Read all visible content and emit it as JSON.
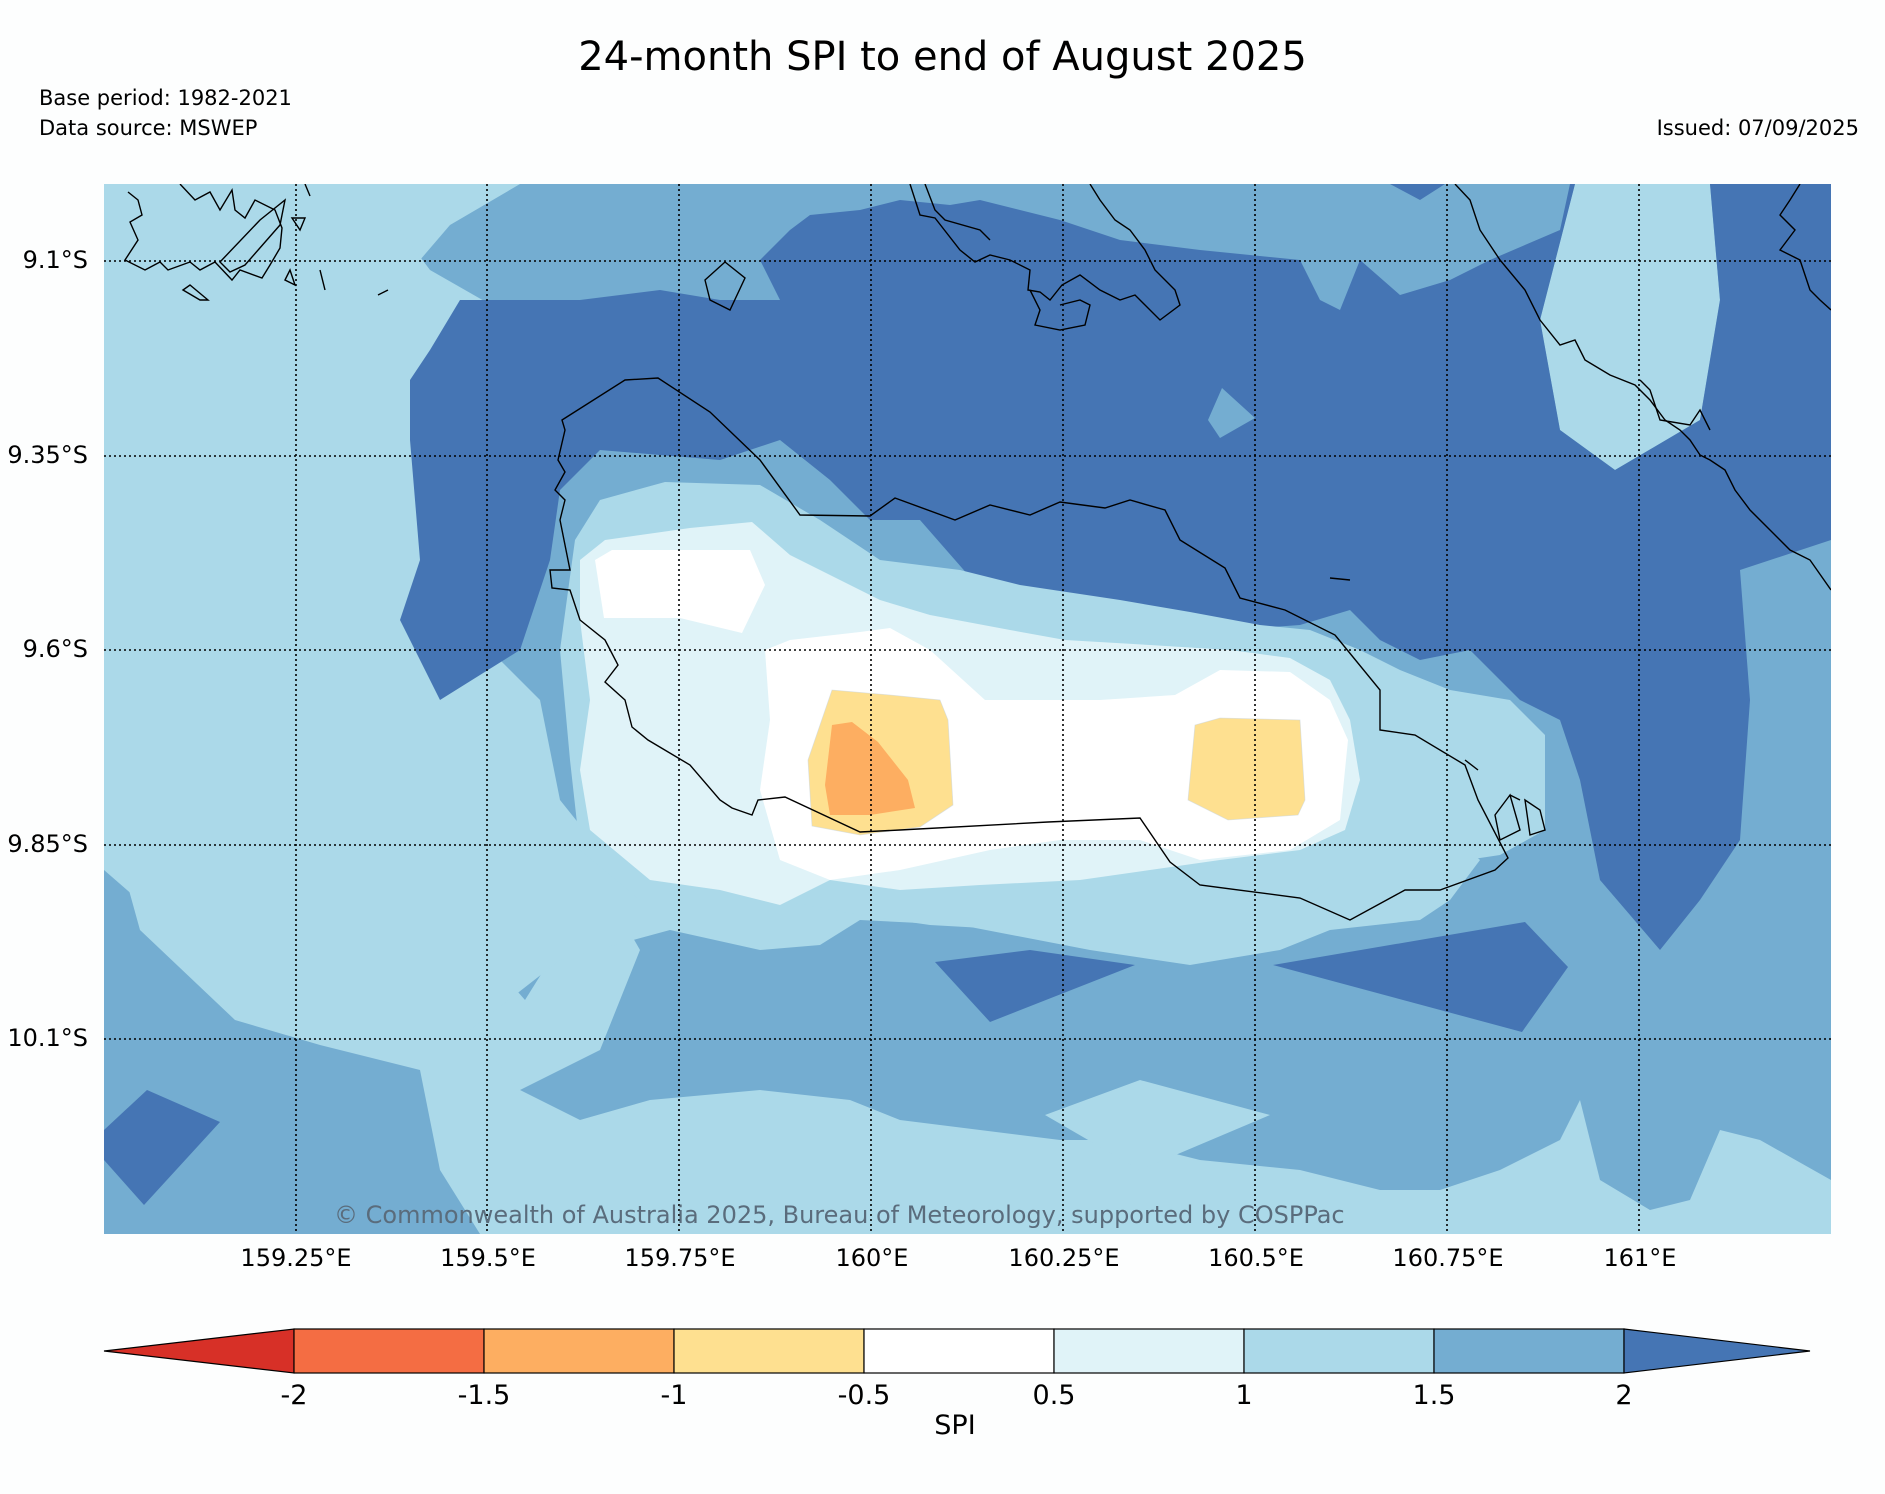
{
  "title": "24-month SPI to end of August 2025",
  "base_period": "Base period: 1982-2021",
  "data_source": "Data source: MSWEP",
  "issued": "Issued: 07/09/2025",
  "copyright": "© Commonwealth of Australia 2025, Bureau of Meteorology, supported by COSPPac",
  "lat_ticks": [
    "9.1°S",
    "9.35°S",
    "9.6°S",
    "9.85°S",
    "10.1°S"
  ],
  "lon_ticks": [
    "159.25°E",
    "159.5°E",
    "159.75°E",
    "160°E",
    "160.25°E",
    "160.5°E",
    "160.75°E",
    "161°E"
  ],
  "colorbar": {
    "label": "SPI",
    "ticks": [
      "-2",
      "-1.5",
      "-1",
      "-0.5",
      "0.5",
      "1",
      "1.5",
      "2"
    ],
    "colors": {
      "below_-2": "#d73027",
      "-2_-1.5": "#f46d43",
      "-1.5_-1": "#fdae61",
      "-1_-0.5": "#fee090",
      "-0.5_0.5": "#ffffff",
      "0.5_1": "#e0f3f8",
      "1_1.5": "#abd9e9",
      "1.5_2": "#74add1",
      "above_2": "#4575b4"
    }
  }
}
